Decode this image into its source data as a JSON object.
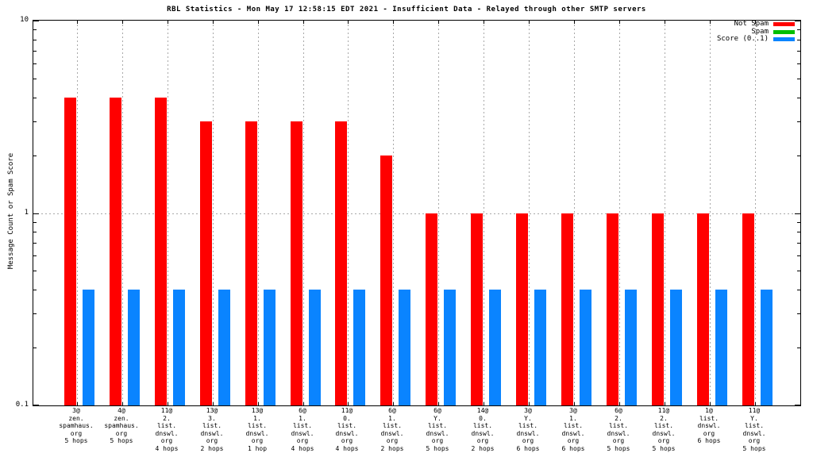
{
  "chart_data": {
    "type": "bar",
    "title": "RBL Statistics - Mon May 17 12:58:15 EDT 2021 - Insufficient Data - Relayed through other SMTP servers",
    "ylabel": "Message Count or Spam Score",
    "yscale": "log",
    "ylim": [
      0.1,
      10
    ],
    "grid": true,
    "legend_position": "top-right-inside",
    "yticks": [
      {
        "value": 0.1,
        "label": "0.1"
      },
      {
        "value": 1,
        "label": "1"
      },
      {
        "value": 10,
        "label": "10"
      }
    ],
    "categories": [
      [
        "3@",
        "zen.",
        "spamhaus.",
        "org",
        "5 hops"
      ],
      [
        "4@",
        "zen.",
        "spamhaus.",
        "org",
        "5 hops"
      ],
      [
        "11@",
        "2.",
        "list.",
        "dnswl.",
        "org",
        "4 hops"
      ],
      [
        "13@",
        "3.",
        "list.",
        "dnswl.",
        "org",
        "2 hops"
      ],
      [
        "13@",
        "1.",
        "list.",
        "dnswl.",
        "org",
        "1 hop"
      ],
      [
        "6@",
        "1.",
        "list.",
        "dnswl.",
        "org",
        "4 hops"
      ],
      [
        "11@",
        "0.",
        "list.",
        "dnswl.",
        "org",
        "4 hops"
      ],
      [
        "6@",
        "1.",
        "list.",
        "dnswl.",
        "org",
        "2 hops"
      ],
      [
        "6@",
        "Y.",
        "list.",
        "dnswl.",
        "org",
        "5 hops"
      ],
      [
        "14@",
        "0.",
        "list.",
        "dnswl.",
        "org",
        "2 hops"
      ],
      [
        "3@",
        "Y.",
        "list.",
        "dnswl.",
        "org",
        "6 hops"
      ],
      [
        "3@",
        "1.",
        "list.",
        "dnswl.",
        "org",
        "6 hops"
      ],
      [
        "6@",
        "2.",
        "list.",
        "dnswl.",
        "org",
        "5 hops"
      ],
      [
        "11@",
        "2.",
        "list.",
        "dnswl.",
        "org",
        "5 hops"
      ],
      [
        "1@",
        "list.",
        "dnswl.",
        "org",
        "6 hops"
      ],
      [
        "11@",
        "Y.",
        "list.",
        "dnswl.",
        "org",
        "5 hops"
      ]
    ],
    "series": [
      {
        "name": "Not Spam",
        "color": "#ff0000",
        "values": [
          4,
          4,
          4,
          3,
          3,
          3,
          3,
          2,
          1,
          1,
          1,
          1,
          1,
          1,
          1,
          1
        ]
      },
      {
        "name": "Spam",
        "color": "#00bf00",
        "values": [
          0,
          0,
          0,
          0,
          0,
          0,
          0,
          0,
          0,
          0,
          0,
          0,
          0,
          0,
          0,
          0
        ]
      },
      {
        "name": "Score (0..1)",
        "color": "#0a84ff",
        "values": [
          0.4,
          0.4,
          0.4,
          0.4,
          0.4,
          0.4,
          0.4,
          0.4,
          0.4,
          0.4,
          0.4,
          0.4,
          0.4,
          0.4,
          0.4,
          0.4
        ]
      }
    ]
  }
}
